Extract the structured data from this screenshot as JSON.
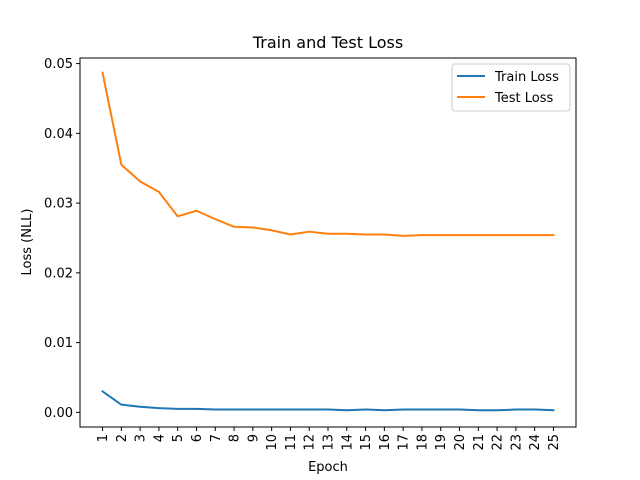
{
  "chart_data": {
    "type": "line",
    "title": "Train and Test Loss",
    "xlabel": "Epoch",
    "ylabel": "Loss (NLL)",
    "x": [
      1,
      2,
      3,
      4,
      5,
      6,
      7,
      8,
      9,
      10,
      11,
      12,
      13,
      14,
      15,
      16,
      17,
      18,
      19,
      20,
      21,
      22,
      23,
      24,
      25
    ],
    "x_tick_labels": [
      "1",
      "2",
      "3",
      "4",
      "5",
      "6",
      "7",
      "8",
      "9",
      "10",
      "11",
      "12",
      "13",
      "14",
      "15",
      "16",
      "17",
      "18",
      "19",
      "20",
      "21",
      "22",
      "23",
      "24",
      "25"
    ],
    "ylim": [
      -0.0021,
      0.0508
    ],
    "y_ticks": [
      0.0,
      0.01,
      0.02,
      0.03,
      0.04,
      0.05
    ],
    "y_tick_labels": [
      "0.00",
      "0.01",
      "0.02",
      "0.03",
      "0.04",
      "0.05"
    ],
    "grid": false,
    "legend_position": "top-right",
    "series": [
      {
        "name": "Train Loss",
        "color": "#1f77b4",
        "values": [
          0.003,
          0.0011,
          0.0008,
          0.0006,
          0.0005,
          0.0005,
          0.0004,
          0.0004,
          0.0004,
          0.0004,
          0.0004,
          0.0004,
          0.0004,
          0.0003,
          0.0004,
          0.0003,
          0.0004,
          0.0004,
          0.0004,
          0.0004,
          0.0003,
          0.0003,
          0.0004,
          0.0004,
          0.0003
        ]
      },
      {
        "name": "Test Loss",
        "color": "#ff7f0e",
        "values": [
          0.0487,
          0.0355,
          0.0331,
          0.0316,
          0.0281,
          0.0289,
          0.0277,
          0.0266,
          0.0265,
          0.0261,
          0.0255,
          0.0259,
          0.0256,
          0.0256,
          0.0255,
          0.0255,
          0.0253,
          0.0254,
          0.0254,
          0.0254,
          0.0254,
          0.0254,
          0.0254,
          0.0254,
          0.0254
        ]
      }
    ]
  }
}
